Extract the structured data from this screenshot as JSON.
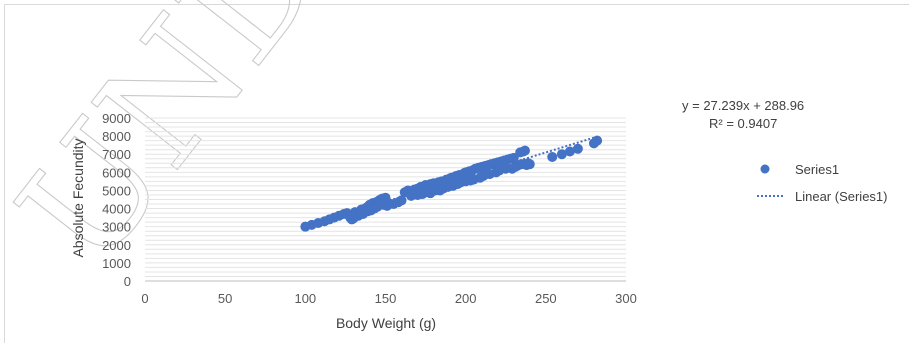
{
  "chart_data": {
    "type": "scatter",
    "title": "",
    "xlabel": "Body Weight (g)",
    "ylabel": "Absolute Fecundity",
    "xlim": [
      0,
      300
    ],
    "ylim": [
      0,
      9000
    ],
    "x_ticks": [
      0,
      50,
      100,
      150,
      200,
      250,
      300
    ],
    "y_ticks": [
      0,
      1000,
      2000,
      3000,
      4000,
      5000,
      6000,
      7000,
      8000,
      9000
    ],
    "grid": "horizontal minor gridlines",
    "legend_position": "right",
    "series": [
      {
        "name": "Series1",
        "color": "#4472c4",
        "points": [
          [
            100,
            3000
          ],
          [
            104,
            3100
          ],
          [
            108,
            3200
          ],
          [
            112,
            3300
          ],
          [
            115,
            3400
          ],
          [
            118,
            3500
          ],
          [
            121,
            3600
          ],
          [
            124,
            3700
          ],
          [
            126,
            3750
          ],
          [
            128,
            3500
          ],
          [
            129,
            3400
          ],
          [
            130,
            3450
          ],
          [
            131,
            3800
          ],
          [
            133,
            3600
          ],
          [
            134,
            3700
          ],
          [
            135,
            3950
          ],
          [
            136,
            3700
          ],
          [
            138,
            4050
          ],
          [
            139,
            3850
          ],
          [
            140,
            4200
          ],
          [
            141,
            3900
          ],
          [
            142,
            4300
          ],
          [
            143,
            4000
          ],
          [
            144,
            4350
          ],
          [
            145,
            4100
          ],
          [
            146,
            4450
          ],
          [
            147,
            4500
          ],
          [
            148,
            4550
          ],
          [
            149,
            4200
          ],
          [
            150,
            4600
          ],
          [
            151,
            4150
          ],
          [
            152,
            4300
          ],
          [
            155,
            4250
          ],
          [
            158,
            4350
          ],
          [
            160,
            4450
          ],
          [
            162,
            4900
          ],
          [
            164,
            5000
          ],
          [
            165,
            4950
          ],
          [
            166,
            4700
          ],
          [
            168,
            5050
          ],
          [
            170,
            5100
          ],
          [
            170,
            4750
          ],
          [
            172,
            5200
          ],
          [
            173,
            4800
          ],
          [
            175,
            5300
          ],
          [
            176,
            4900
          ],
          [
            178,
            5350
          ],
          [
            178,
            4850
          ],
          [
            180,
            5400
          ],
          [
            181,
            5000
          ],
          [
            183,
            5450
          ],
          [
            184,
            5000
          ],
          [
            185,
            5500
          ],
          [
            186,
            5100
          ],
          [
            188,
            5600
          ],
          [
            189,
            5200
          ],
          [
            190,
            5650
          ],
          [
            191,
            5700
          ],
          [
            192,
            5250
          ],
          [
            194,
            5800
          ],
          [
            195,
            5350
          ],
          [
            196,
            5850
          ],
          [
            197,
            5450
          ],
          [
            199,
            5950
          ],
          [
            200,
            6000
          ],
          [
            200,
            5500
          ],
          [
            202,
            6050
          ],
          [
            203,
            5550
          ],
          [
            204,
            6100
          ],
          [
            205,
            5600
          ],
          [
            206,
            6200
          ],
          [
            208,
            6250
          ],
          [
            209,
            5700
          ],
          [
            210,
            6300
          ],
          [
            211,
            5800
          ],
          [
            212,
            6350
          ],
          [
            213,
            5900
          ],
          [
            214,
            6400
          ],
          [
            215,
            5900
          ],
          [
            216,
            6450
          ],
          [
            218,
            6500
          ],
          [
            219,
            6000
          ],
          [
            220,
            6550
          ],
          [
            221,
            6100
          ],
          [
            222,
            6600
          ],
          [
            224,
            6650
          ],
          [
            225,
            6200
          ],
          [
            226,
            6700
          ],
          [
            228,
            6750
          ],
          [
            229,
            6200
          ],
          [
            230,
            6800
          ],
          [
            231,
            6300
          ],
          [
            232,
            6350
          ],
          [
            233,
            6400
          ],
          [
            234,
            7100
          ],
          [
            235,
            6450
          ],
          [
            236,
            7150
          ],
          [
            237,
            7200
          ],
          [
            238,
            6400
          ],
          [
            239,
            6500
          ],
          [
            240,
            6450
          ],
          [
            254,
            6850
          ],
          [
            260,
            7000
          ],
          [
            265,
            7150
          ],
          [
            270,
            7300
          ],
          [
            280,
            7600
          ],
          [
            282,
            7750
          ]
        ]
      }
    ],
    "trendline": {
      "name": "Linear (Series1)",
      "slope": 27.239,
      "intercept": 288.96,
      "x_range": [
        100,
        283
      ],
      "color": "#4472c4",
      "equation_label": "y = 27.239x + 288.96",
      "r2_label": "R² = 0.9407"
    }
  },
  "watermark_text": "UNDER PEER REVIEW"
}
